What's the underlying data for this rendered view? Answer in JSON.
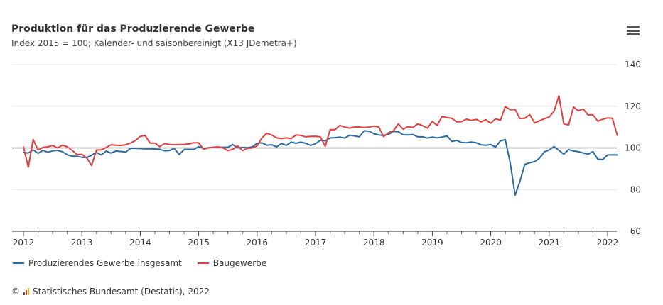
{
  "chart_data": {
    "type": "line",
    "title": "Produktion für das Produzierende Gewerbe",
    "subtitle": "Index 2015 = 100; Kalender- und saisonbereinigt (X13 JDemetra+)",
    "xlabel": "",
    "ylabel": "",
    "xlim": [
      2012,
      2022
    ],
    "ylim": [
      60,
      140
    ],
    "y_ticks": [
      "140",
      "120",
      "100",
      "80",
      "60"
    ],
    "x_ticks": [
      "2012",
      "2013",
      "2014",
      "2015",
      "2016",
      "2017",
      "2018",
      "2019",
      "2020",
      "2021",
      "2022"
    ],
    "reference_line": 100,
    "legend_position": "bottom-left",
    "grid": true,
    "series": [
      {
        "name": "Produzierendes Gewerbe insgesamt",
        "color": "#2a6aa3",
        "start": 2012,
        "values": [
          97.8,
          97.5,
          99.0,
          97.4,
          98.8,
          97.9,
          98.6,
          98.8,
          98.2,
          96.7,
          96.0,
          96.0,
          95.5,
          95.3,
          96.5,
          97.8,
          96.6,
          98.5,
          97.5,
          98.5,
          98.3,
          98.0,
          99.8,
          99.8,
          99.7,
          99.6,
          99.6,
          99.5,
          99.3,
          98.6,
          98.7,
          99.8,
          96.8,
          99.2,
          99.3,
          99.2,
          100.6,
          99.7,
          100.1,
          100.2,
          100.3,
          100.3,
          100.3,
          101.6,
          100.0,
          100.2,
          100.1,
          100.5,
          102.2,
          102.4,
          101.3,
          101.5,
          100.5,
          102.1,
          101.2,
          102.8,
          102.2,
          102.8,
          102.2,
          101.2,
          102.0,
          103.6,
          103.4,
          104.8,
          104.9,
          105.2,
          104.7,
          106.1,
          105.8,
          105.3,
          108.2,
          108.0,
          106.8,
          106.2,
          106.0,
          106.5,
          107.9,
          107.8,
          106.3,
          106.2,
          106.4,
          105.3,
          105.3,
          104.7,
          105.2,
          104.8,
          105.2,
          105.8,
          103.1,
          103.6,
          102.6,
          102.5,
          102.8,
          102.5,
          101.5,
          101.3,
          101.6,
          100.4,
          103.4,
          104.0,
          92.7,
          77.3,
          84.0,
          92.1,
          92.9,
          93.4,
          95.0,
          98.1,
          99.0,
          100.6,
          98.8,
          97.0,
          99.2,
          98.5,
          98.2,
          97.6,
          97.0,
          98.2,
          94.6,
          94.4,
          96.6,
          96.7,
          96.6
        ]
      },
      {
        "name": "Baugewerbe",
        "color": "#e04040",
        "start": 2012,
        "values": [
          100.5,
          90.7,
          104.0,
          99.0,
          100.2,
          100.5,
          101.2,
          100.0,
          101.3,
          100.5,
          98.8,
          96.8,
          96.9,
          95.2,
          91.6,
          99.0,
          99.0,
          100.2,
          101.5,
          101.3,
          101.2,
          101.5,
          102.3,
          103.5,
          105.5,
          106.0,
          102.3,
          102.3,
          100.6,
          102.1,
          101.6,
          101.5,
          101.6,
          101.6,
          101.9,
          102.5,
          102.4,
          99.4,
          100.0,
          100.3,
          100.5,
          100.0,
          98.7,
          99.3,
          101.0,
          98.7,
          99.8,
          100.0,
          101.0,
          104.8,
          107.0,
          106.2,
          104.8,
          104.5,
          104.8,
          104.5,
          106.2,
          106.0,
          105.3,
          105.5,
          105.6,
          105.3,
          100.7,
          108.8,
          108.7,
          110.8,
          110.0,
          109.5,
          110.0,
          110.0,
          109.8,
          110.0,
          110.5,
          110.0,
          105.4,
          107.3,
          108.2,
          111.5,
          109.0,
          110.2,
          109.8,
          111.5,
          110.7,
          109.5,
          112.7,
          110.8,
          115.1,
          114.5,
          114.2,
          112.5,
          112.6,
          113.8,
          113.2,
          113.7,
          112.5,
          113.5,
          111.8,
          114.0,
          113.3,
          119.8,
          118.3,
          118.5,
          114.1,
          114.2,
          116.0,
          112.0,
          113.0,
          114.0,
          114.8,
          117.5,
          125.0,
          111.5,
          111.0,
          119.6,
          117.8,
          118.7,
          115.8,
          115.9,
          112.8,
          113.8,
          114.4,
          114.2,
          106.0
        ]
      }
    ]
  },
  "header": {
    "menu_icon": "hamburger-menu-icon"
  },
  "legend": {
    "items": [
      {
        "label": "Produzierendes Gewerbe insgesamt",
        "color": "#2a6aa3"
      },
      {
        "label": "Baugewerbe",
        "color": "#e04040"
      }
    ]
  },
  "credit": {
    "symbol": "©",
    "logo_icon": "destatis-bars-icon",
    "text": "Statistisches Bundesamt (Destatis), 2022"
  }
}
